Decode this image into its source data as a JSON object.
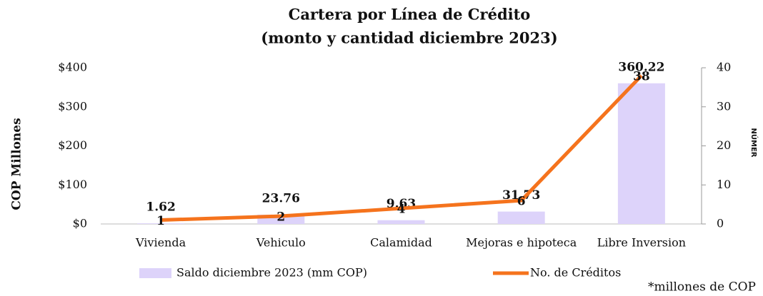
{
  "chart_data": {
    "type": "bar",
    "title": "Cartera por Línea de Crédito",
    "subtitle": "(monto y cantidad diciembre 2023)",
    "y_label": "COP Millones",
    "y2_label": "NÚMER",
    "categories": [
      "Vivienda",
      "Vehiculo",
      "Calamidad",
      "Mejoras e hipoteca",
      "Libre Inversion"
    ],
    "series": [
      {
        "name": "Saldo diciembre 2023 (mm COP)",
        "type": "bar",
        "color": "#ddd3fa",
        "values": [
          1.62,
          23.76,
          9.63,
          31.73,
          360.22
        ]
      },
      {
        "name": "No. de Créditos",
        "type": "line",
        "axis": "y2",
        "color": "#f5731d",
        "values": [
          1,
          2,
          4,
          6,
          38
        ]
      }
    ],
    "ylim": [
      0,
      400
    ],
    "yticks": [
      {
        "value": 0,
        "label": "$0"
      },
      {
        "value": 100,
        "label": "$100"
      },
      {
        "value": 200,
        "label": "$200"
      },
      {
        "value": 300,
        "label": "$300"
      },
      {
        "value": 400,
        "label": "$400"
      }
    ],
    "y2lim": [
      0,
      40
    ],
    "y2ticks": [
      0,
      10,
      20,
      30,
      40
    ],
    "legend": "bottom",
    "footnote": "*millones de COP"
  }
}
